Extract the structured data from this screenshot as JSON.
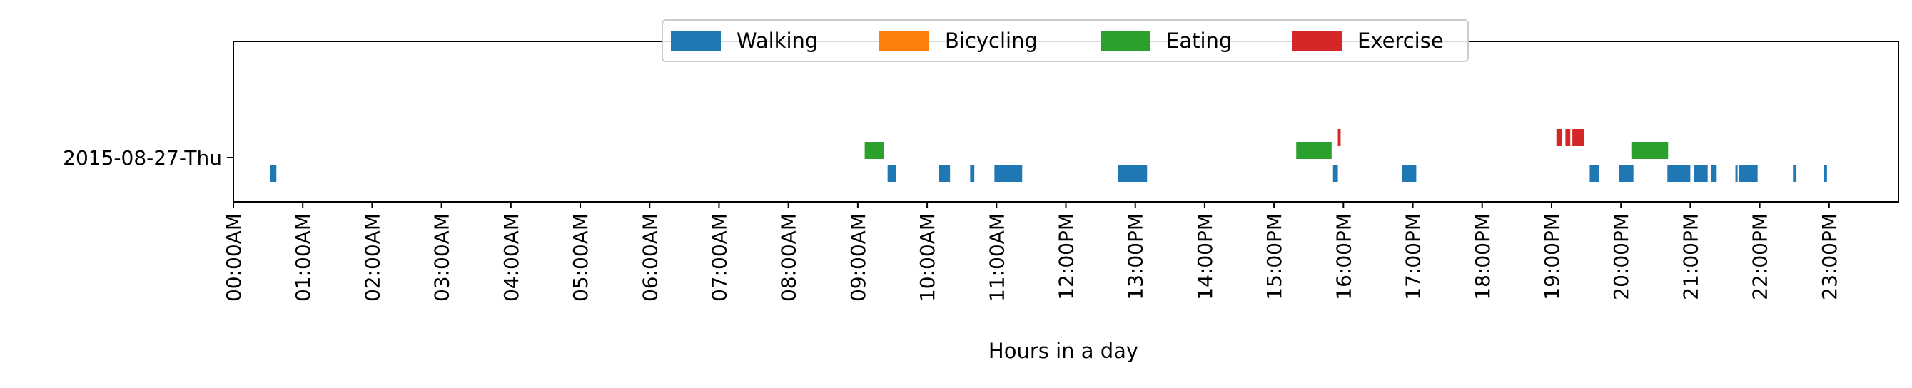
{
  "chart_data": {
    "type": "timeline",
    "xlabel": "Hours in a day",
    "ylabel": "",
    "xlim": [
      0,
      24
    ],
    "grid": false,
    "legend_placement": "top-center",
    "y_categories": [
      "2015-08-27-Thu"
    ],
    "x_tick_labels": [
      "00:00AM",
      "01:00AM",
      "02:00AM",
      "03:00AM",
      "04:00AM",
      "05:00AM",
      "06:00AM",
      "07:00AM",
      "08:00AM",
      "09:00AM",
      "10:00AM",
      "11:00AM",
      "12:00PM",
      "13:00PM",
      "14:00PM",
      "15:00PM",
      "16:00PM",
      "17:00PM",
      "18:00PM",
      "19:00PM",
      "20:00PM",
      "21:00PM",
      "22:00PM",
      "23:00PM"
    ],
    "series": [
      {
        "name": "Walking",
        "color": "#1f77b4",
        "intervals": [
          [
            0.53,
            0.62
          ],
          [
            9.43,
            9.55
          ],
          [
            10.17,
            10.33
          ],
          [
            10.62,
            10.68
          ],
          [
            10.97,
            11.37
          ],
          [
            12.75,
            13.17
          ],
          [
            15.85,
            15.92
          ],
          [
            16.85,
            17.05
          ],
          [
            19.55,
            19.68
          ],
          [
            19.97,
            20.18
          ],
          [
            20.67,
            21.0
          ],
          [
            21.05,
            21.25
          ],
          [
            21.3,
            21.38
          ],
          [
            21.65,
            21.67
          ],
          [
            21.7,
            21.97
          ],
          [
            22.48,
            22.53
          ],
          [
            22.92,
            22.97
          ]
        ]
      },
      {
        "name": "Bicycling",
        "color": "#ff7f0e",
        "intervals": []
      },
      {
        "name": "Eating",
        "color": "#2ca02c",
        "intervals": [
          [
            9.1,
            9.38
          ],
          [
            15.32,
            15.83
          ],
          [
            20.15,
            20.68
          ]
        ]
      },
      {
        "name": "Exercise",
        "color": "#d62728",
        "intervals": [
          [
            15.92,
            15.96
          ],
          [
            19.07,
            19.15
          ],
          [
            19.2,
            19.27
          ],
          [
            19.3,
            19.47
          ]
        ]
      }
    ]
  }
}
